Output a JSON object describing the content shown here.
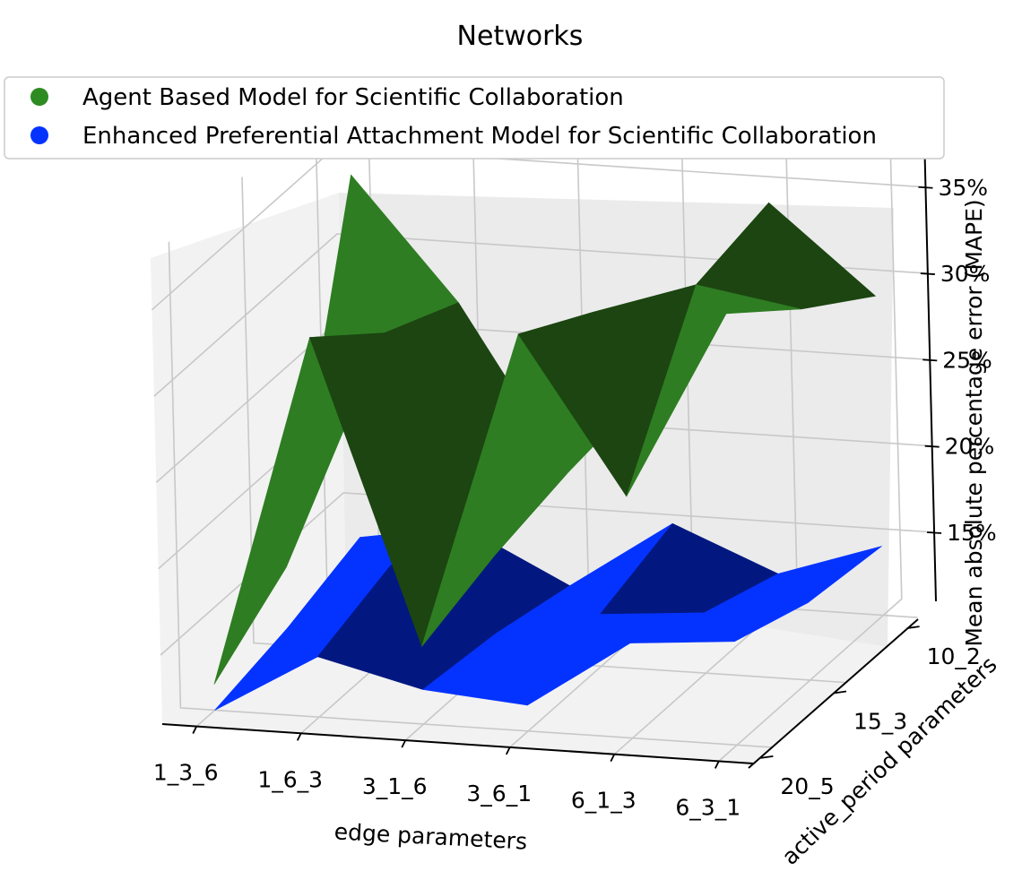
{
  "chart_data": {
    "type": "surface3d",
    "title": "Networks",
    "xlabel": "edge parameters",
    "ylabel": "active_period parameters",
    "zlabel": "Mean absolute percentage error (MAPE)",
    "x_categories": [
      "1_3_6",
      "1_6_3",
      "3_1_6",
      "3_6_1",
      "6_1_3",
      "6_3_1"
    ],
    "y_categories": [
      "10_2",
      "15_3",
      "20_5"
    ],
    "z_ticks": [
      "15%",
      "20%",
      "25%",
      "30%",
      "35%"
    ],
    "zlim": [
      11,
      38
    ],
    "grid": true,
    "legend_position": "top",
    "series": [
      {
        "name": "Agent Based Model for Scientific Collaboration",
        "color": "#2e7d22",
        "dark_color": "#1c4511",
        "values": [
          [
            34.5,
            15.5,
            12.5
          ],
          [
            27.5,
            29.5,
            33.0
          ],
          [
            18.0,
            17.0,
            15.5
          ],
          [
            24.5,
            31.5,
            34.0
          ],
          [
            34.5,
            33.5,
            25.0
          ],
          [
            29.5,
            32.5,
            36.0
          ]
        ]
      },
      {
        "name": "Enhanced Preferential Attachment Model for Scientific Collaboration",
        "color": "#0433ff",
        "dark_color": "#021880",
        "values": [
          [
            13.5,
            12.0,
            11.0
          ],
          [
            14.5,
            16.0,
            14.5
          ],
          [
            11.5,
            12.5,
            13.0
          ],
          [
            15.5,
            14.0,
            12.5
          ],
          [
            13.0,
            14.5,
            16.5
          ],
          [
            15.0,
            15.5,
            17.0
          ]
        ]
      }
    ]
  }
}
